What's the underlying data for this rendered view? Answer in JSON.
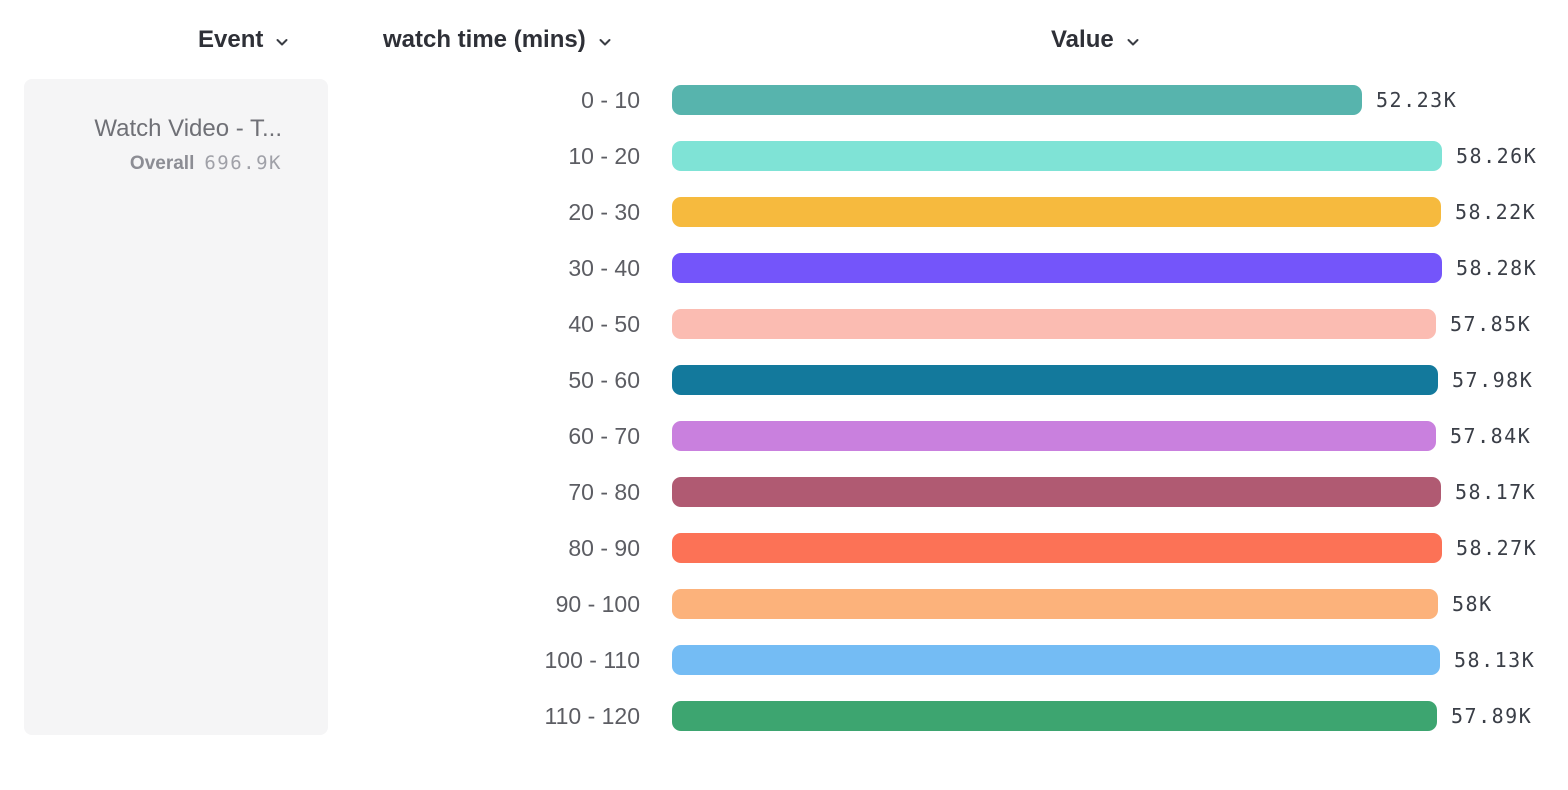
{
  "header": {
    "columns": [
      {
        "id": "event",
        "label": "Event",
        "icon": "chevron-down-icon"
      },
      {
        "id": "breakdown",
        "label": "watch time (mins)",
        "icon": "chevron-down-icon"
      },
      {
        "id": "value",
        "label": "Value",
        "icon": "chevron-down-icon"
      }
    ]
  },
  "event_panel": {
    "event_name": "Watch Video - T...",
    "overall_label": "Overall",
    "overall_value": "696.9K"
  },
  "chart_data": {
    "type": "bar",
    "orientation": "horizontal",
    "title": "",
    "xlabel": "Value",
    "ylabel": "watch time (mins)",
    "categories": [
      "0 - 10",
      "10 - 20",
      "20 - 30",
      "30 - 40",
      "40 - 50",
      "50 - 60",
      "60 - 70",
      "70 - 80",
      "80 - 90",
      "90 - 100",
      "100 - 110",
      "110 - 120"
    ],
    "values": [
      52230,
      58260,
      58220,
      58280,
      57850,
      57980,
      57840,
      58170,
      58270,
      58000,
      58130,
      57890
    ],
    "display_values": [
      "52.23K",
      "58.26K",
      "58.22K",
      "58.28K",
      "57.85K",
      "57.98K",
      "57.84K",
      "58.17K",
      "58.27K",
      "58K",
      "58.13K",
      "57.89K"
    ],
    "colors": [
      "#57b4ad",
      "#7fe3d6",
      "#f6ba3e",
      "#7455fa",
      "#fbbcb2",
      "#13799c",
      "#c980de",
      "#b05a72",
      "#fc7256",
      "#fcb27b",
      "#74bcf4",
      "#3da570"
    ],
    "xlim": [
      0,
      58280
    ],
    "grid": false,
    "legend": "none"
  }
}
